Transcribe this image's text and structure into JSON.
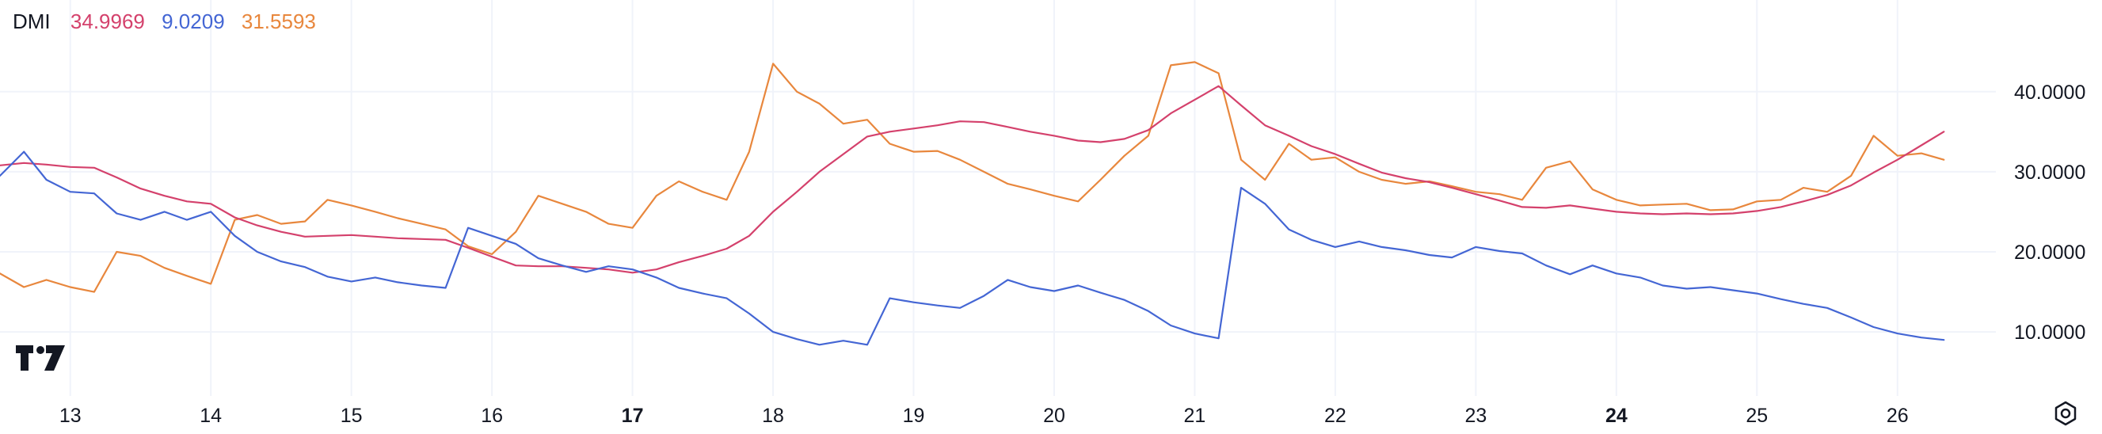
{
  "legend": {
    "indicator": "DMI",
    "adx_value": "34.9969",
    "plus_di_value": "9.0209",
    "minus_di_value": "31.5593"
  },
  "colors": {
    "adx": "#d4416c",
    "plus_di": "#4466d4",
    "minus_di": "#e8873d",
    "grid": "#f0f3fa",
    "text": "#131722"
  },
  "icons": {
    "logo": "tradingview-logo-icon",
    "settings": "settings-hexagon-icon"
  },
  "chart_data": {
    "type": "line",
    "grid": true,
    "ylim": [
      2.0,
      47.0
    ],
    "xlim": [
      12.5,
      26.7
    ],
    "yticks": [
      {
        "value": 10,
        "label": "10.0000"
      },
      {
        "value": 20,
        "label": "20.0000"
      },
      {
        "value": 30,
        "label": "30.0000"
      },
      {
        "value": 40,
        "label": "40.0000"
      }
    ],
    "xticks": [
      {
        "value": 13,
        "label": "13",
        "bold": false
      },
      {
        "value": 14,
        "label": "14",
        "bold": false
      },
      {
        "value": 15,
        "label": "15",
        "bold": false
      },
      {
        "value": 16,
        "label": "16",
        "bold": false
      },
      {
        "value": 17,
        "label": "17",
        "bold": true
      },
      {
        "value": 18,
        "label": "18",
        "bold": false
      },
      {
        "value": 19,
        "label": "19",
        "bold": false
      },
      {
        "value": 20,
        "label": "20",
        "bold": false
      },
      {
        "value": 21,
        "label": "21",
        "bold": false
      },
      {
        "value": 22,
        "label": "22",
        "bold": false
      },
      {
        "value": 23,
        "label": "23",
        "bold": false
      },
      {
        "value": 24,
        "label": "24",
        "bold": true
      },
      {
        "value": 25,
        "label": "25",
        "bold": false
      },
      {
        "value": 26,
        "label": "26",
        "bold": false
      }
    ],
    "series": [
      {
        "key": "minus_di",
        "x": [
          12.5,
          12.67,
          12.83,
          13.0,
          13.17,
          13.33,
          13.5,
          13.67,
          13.83,
          14.0,
          14.17,
          14.33,
          14.5,
          14.67,
          14.83,
          15.0,
          15.17,
          15.33,
          15.5,
          15.67,
          15.83,
          16.0,
          16.17,
          16.33,
          16.5,
          16.67,
          16.83,
          17.0,
          17.17,
          17.33,
          17.5,
          17.67,
          17.83,
          18.0,
          18.17,
          18.33,
          18.5,
          18.67,
          18.83,
          19.0,
          19.17,
          19.33,
          19.5,
          19.67,
          19.83,
          20.0,
          20.17,
          20.33,
          20.5,
          20.67,
          20.83,
          21.0,
          21.17,
          21.33,
          21.5,
          21.67,
          21.83,
          22.0,
          22.17,
          22.33,
          22.5,
          22.67,
          22.83,
          23.0,
          23.17,
          23.33,
          23.5,
          23.67,
          23.83,
          24.0,
          24.17,
          24.33,
          24.5,
          24.67,
          24.83,
          25.0,
          25.17,
          25.33,
          25.5,
          25.67,
          25.83,
          26.0,
          26.17,
          26.33
        ],
        "values": [
          17.3,
          15.6,
          16.5,
          15.6,
          15.0,
          20.0,
          19.5,
          18.0,
          17.0,
          16.0,
          24.0,
          24.6,
          23.5,
          23.8,
          26.5,
          25.8,
          25.0,
          24.2,
          23.5,
          22.8,
          20.7,
          19.7,
          22.5,
          27.0,
          26.0,
          25.0,
          23.5,
          23.0,
          27.0,
          28.8,
          27.5,
          26.5,
          32.5,
          43.5,
          40.0,
          38.5,
          36.0,
          36.5,
          33.5,
          32.5,
          32.6,
          31.5,
          30.0,
          28.5,
          27.8,
          27.0,
          26.3,
          29.0,
          32.0,
          34.5,
          43.3,
          43.7,
          42.3,
          31.5,
          29.0,
          33.5,
          31.5,
          31.8,
          30.0,
          29.0,
          28.5,
          28.8,
          28.2,
          27.5,
          27.2,
          26.5,
          30.5,
          31.3,
          27.8,
          26.5,
          25.8,
          25.9,
          26.0,
          25.2,
          25.3,
          26.3,
          26.5,
          28.0,
          27.5,
          29.5,
          34.5,
          32.0,
          32.3,
          31.5
        ]
      },
      {
        "key": "adx",
        "x": [
          12.5,
          12.67,
          12.83,
          13.0,
          13.17,
          13.33,
          13.5,
          13.67,
          13.83,
          14.0,
          14.17,
          14.33,
          14.5,
          14.67,
          14.83,
          15.0,
          15.17,
          15.33,
          15.5,
          15.67,
          15.83,
          16.0,
          16.17,
          16.33,
          16.5,
          16.67,
          16.83,
          17.0,
          17.17,
          17.33,
          17.5,
          17.67,
          17.83,
          18.0,
          18.17,
          18.33,
          18.5,
          18.67,
          18.83,
          19.0,
          19.17,
          19.33,
          19.5,
          19.67,
          19.83,
          20.0,
          20.17,
          20.33,
          20.5,
          20.67,
          20.83,
          21.0,
          21.17,
          21.33,
          21.5,
          21.67,
          21.83,
          22.0,
          22.17,
          22.33,
          22.5,
          22.67,
          22.83,
          23.0,
          23.17,
          23.33,
          23.5,
          23.67,
          23.83,
          24.0,
          24.17,
          24.33,
          24.5,
          24.67,
          24.83,
          25.0,
          25.17,
          25.33,
          25.5,
          25.67,
          25.83,
          26.0,
          26.17,
          26.33
        ],
        "values": [
          30.8,
          31.1,
          30.9,
          30.6,
          30.5,
          29.3,
          27.9,
          27.0,
          26.3,
          26.0,
          24.3,
          23.3,
          22.5,
          21.9,
          22.0,
          22.1,
          21.9,
          21.7,
          21.6,
          21.5,
          20.5,
          19.4,
          18.3,
          18.2,
          18.2,
          18.0,
          17.8,
          17.4,
          17.8,
          18.7,
          19.5,
          20.4,
          22.0,
          25.0,
          27.5,
          30.0,
          32.2,
          34.4,
          35.0,
          35.4,
          35.8,
          36.3,
          36.2,
          35.6,
          35.0,
          34.5,
          33.9,
          33.7,
          34.1,
          35.2,
          37.3,
          39.0,
          40.7,
          38.3,
          35.8,
          34.5,
          33.2,
          32.2,
          31.0,
          29.9,
          29.2,
          28.7,
          28.0,
          27.2,
          26.4,
          25.6,
          25.5,
          25.8,
          25.4,
          25.0,
          24.8,
          24.7,
          24.8,
          24.7,
          24.8,
          25.1,
          25.6,
          26.3,
          27.1,
          28.3,
          29.9,
          31.5,
          33.3,
          35.0
        ]
      },
      {
        "key": "plus_di",
        "x": [
          12.5,
          12.67,
          12.83,
          13.0,
          13.17,
          13.33,
          13.5,
          13.67,
          13.83,
          14.0,
          14.17,
          14.33,
          14.5,
          14.67,
          14.83,
          15.0,
          15.17,
          15.33,
          15.5,
          15.67,
          15.83,
          16.0,
          16.17,
          16.33,
          16.5,
          16.67,
          16.83,
          17.0,
          17.17,
          17.33,
          17.5,
          17.67,
          17.83,
          18.0,
          18.17,
          18.33,
          18.5,
          18.67,
          18.83,
          19.0,
          19.17,
          19.33,
          19.5,
          19.67,
          19.83,
          20.0,
          20.17,
          20.33,
          20.5,
          20.67,
          20.83,
          21.0,
          21.17,
          21.33,
          21.5,
          21.67,
          21.83,
          22.0,
          22.17,
          22.33,
          22.5,
          22.67,
          22.83,
          23.0,
          23.17,
          23.33,
          23.5,
          23.67,
          23.83,
          24.0,
          24.17,
          24.33,
          24.5,
          24.67,
          24.83,
          25.0,
          25.17,
          25.33,
          25.5,
          25.67,
          25.83,
          26.0,
          26.17,
          26.33
        ],
        "values": [
          29.5,
          32.5,
          29.0,
          27.5,
          27.3,
          24.8,
          24.0,
          25.0,
          24.0,
          25.0,
          22.0,
          20.0,
          18.8,
          18.1,
          16.9,
          16.3,
          16.8,
          16.2,
          15.8,
          15.5,
          23.0,
          22.0,
          21.0,
          19.2,
          18.3,
          17.5,
          18.2,
          17.8,
          16.8,
          15.5,
          14.8,
          14.2,
          12.3,
          10.0,
          9.1,
          8.4,
          8.9,
          8.4,
          14.2,
          13.7,
          13.3,
          13.0,
          14.5,
          16.5,
          15.6,
          15.1,
          15.8,
          14.9,
          14.0,
          12.6,
          10.8,
          9.8,
          9.2,
          28.0,
          26.0,
          22.8,
          21.5,
          20.6,
          21.3,
          20.6,
          20.2,
          19.6,
          19.3,
          20.6,
          20.1,
          19.8,
          18.3,
          17.2,
          18.3,
          17.3,
          16.8,
          15.8,
          15.4,
          15.6,
          15.2,
          14.8,
          14.1,
          13.5,
          13.0,
          11.8,
          10.6,
          9.8,
          9.3,
          9.0
        ]
      }
    ]
  }
}
